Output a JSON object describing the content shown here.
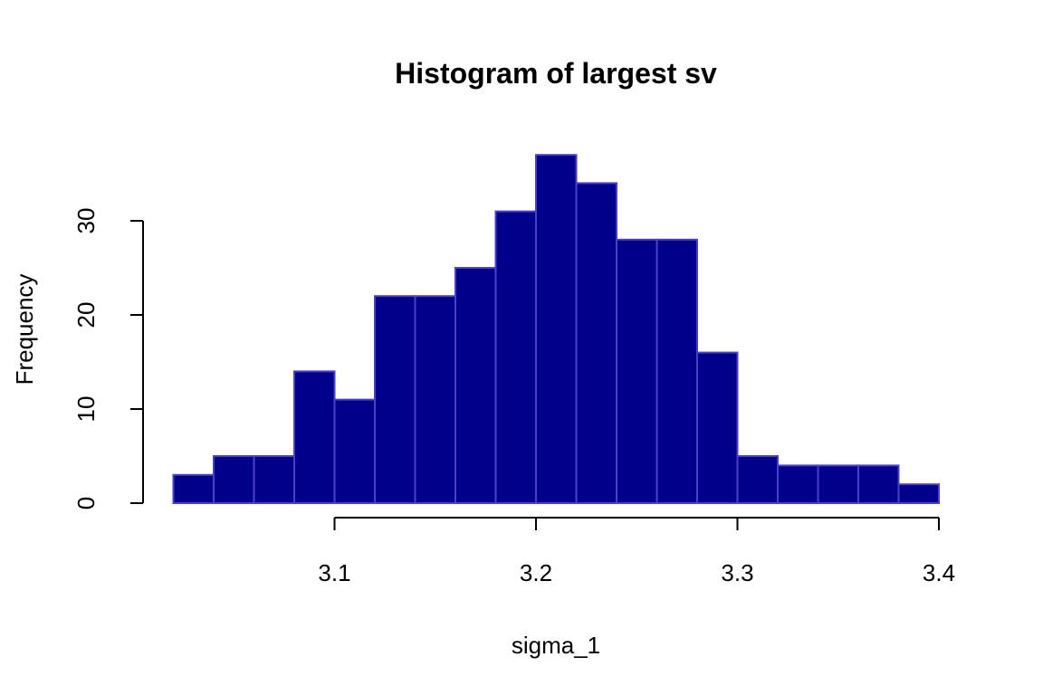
{
  "chart_data": {
    "type": "bar",
    "title": "Histogram of largest sv",
    "xlabel": "sigma_1",
    "ylabel": "Frequency",
    "bin_edges": [
      3.02,
      3.04,
      3.06,
      3.08,
      3.1,
      3.12,
      3.14,
      3.16,
      3.18,
      3.2,
      3.22,
      3.24,
      3.26,
      3.28,
      3.3,
      3.32,
      3.34,
      3.36,
      3.38,
      3.4
    ],
    "values": [
      3,
      5,
      5,
      14,
      11,
      22,
      22,
      25,
      31,
      37,
      34,
      28,
      28,
      16,
      5,
      4,
      4,
      4,
      2
    ],
    "x_ticks": [
      3.1,
      3.2,
      3.3,
      3.4
    ],
    "x_tick_labels": [
      "3.1",
      "3.2",
      "3.3",
      "3.4"
    ],
    "y_ticks": [
      0,
      10,
      20,
      30
    ],
    "y_tick_labels": [
      "0",
      "10",
      "20",
      "30"
    ],
    "xlim": [
      3.02,
      3.4
    ],
    "ylim": [
      0,
      37
    ],
    "grid": false,
    "colors": {
      "fill": "#00008B",
      "border": "#4B3FC8"
    }
  }
}
